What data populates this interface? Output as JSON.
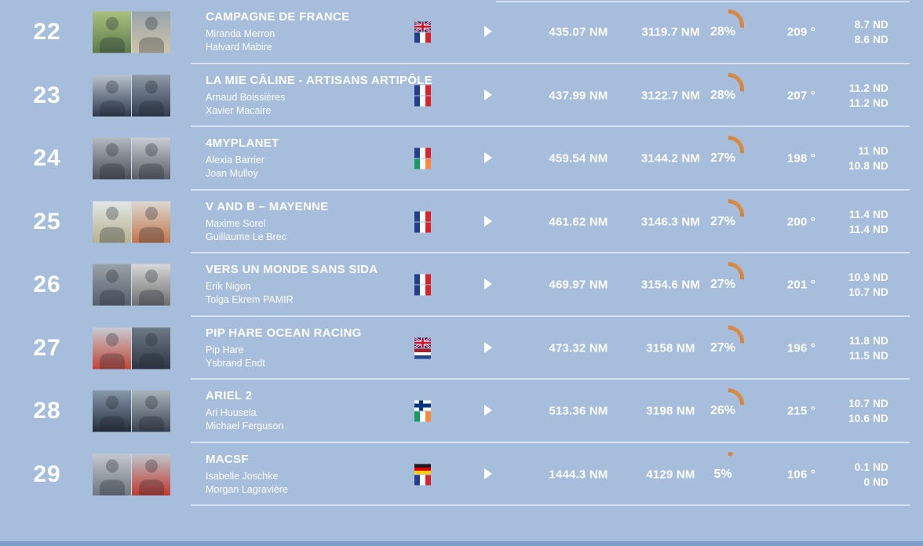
{
  "page": {
    "background_color": "#a6bedb",
    "bottom_bar_color": "#7d9dca",
    "separator_color": "#d6e2f2",
    "text_color": "#ffffff",
    "gauge_color_start": "#a85413",
    "gauge_color_end": "#e0954f"
  },
  "icons": {
    "expand_arrow": "play-triangle"
  },
  "rows": [
    {
      "rank": "22",
      "team": "CAMPAGNE DE FRANCE",
      "skipper1": "Miranda Merron",
      "skipper2": "Halvard Mabire",
      "flags": [
        "gb",
        "fr"
      ],
      "dist_to_leader": "435.07 NM",
      "dist_to_finish": "3119.7 NM",
      "progress_pct": 28,
      "progress_label": "28%",
      "heading": "209 °",
      "speed1": "8.7 ND",
      "speed2": "8.6 ND",
      "photo_left_colors": [
        "#a9c17f",
        "#5d7a4a"
      ],
      "photo_right_colors": [
        "#9aa4ae",
        "#cfc4a8"
      ]
    },
    {
      "rank": "23",
      "team": "LA MIE CÂLINE - ARTISANS ARTIPÔLE",
      "skipper1": "Arnaud Boissières",
      "skipper2": "Xavier Macaire",
      "flags": [
        "fr",
        "fr"
      ],
      "dist_to_leader": "437.99 NM",
      "dist_to_finish": "3122.7 NM",
      "progress_pct": 28,
      "progress_label": "28%",
      "heading": "207 °",
      "speed1": "11.2 ND",
      "speed2": "11.2 ND",
      "photo_left_colors": [
        "#b9c3cc",
        "#2e3a4d"
      ],
      "photo_right_colors": [
        "#8e9aa6",
        "#303c4e"
      ]
    },
    {
      "rank": "24",
      "team": "4MYPLANET",
      "skipper1": "Alexia Barrier",
      "skipper2": "Joan Mulloy",
      "flags": [
        "fr",
        "ie"
      ],
      "dist_to_leader": "459.54 NM",
      "dist_to_finish": "3144.2 NM",
      "progress_pct": 27,
      "progress_label": "27%",
      "heading": "198 °",
      "speed1": "11 ND",
      "speed2": "10.8 ND",
      "photo_left_colors": [
        "#b4b9c0",
        "#4a4f58"
      ],
      "photo_right_colors": [
        "#c9ccd1",
        "#5a5f66"
      ]
    },
    {
      "rank": "25",
      "team": "V AND B – MAYENNE",
      "skipper1": "Maxime Sorel",
      "skipper2": "Guillaume Le Brec",
      "flags": [
        "fr",
        "fr"
      ],
      "dist_to_leader": "461.62 NM",
      "dist_to_finish": "3146.3 NM",
      "progress_pct": 27,
      "progress_label": "27%",
      "heading": "200 °",
      "speed1": "11.4 ND",
      "speed2": "11.4 ND",
      "photo_left_colors": [
        "#e3e6e8",
        "#b5b28c"
      ],
      "photo_right_colors": [
        "#dcd9d2",
        "#c2764a"
      ]
    },
    {
      "rank": "26",
      "team": "VERS UN MONDE SANS SIDA",
      "skipper1": "Erik Nigon",
      "skipper2": "Tolga Ekrem PAMIR",
      "flags": [
        "fr",
        "fr"
      ],
      "dist_to_leader": "469.97 NM",
      "dist_to_finish": "3154.6 NM",
      "progress_pct": 27,
      "progress_label": "27%",
      "heading": "201 °",
      "speed1": "10.9 ND",
      "speed2": "10.7 ND",
      "photo_left_colors": [
        "#9aa1a8",
        "#55606c"
      ],
      "photo_right_colors": [
        "#d8d8d8",
        "#6e6e6e"
      ]
    },
    {
      "rank": "27",
      "team": "PIP HARE OCEAN RACING",
      "skipper1": "Pip Hare",
      "skipper2": "Ysbrand Endt",
      "flags": [
        "gb",
        "nl"
      ],
      "dist_to_leader": "473.32 NM",
      "dist_to_finish": "3158 NM",
      "progress_pct": 27,
      "progress_label": "27%",
      "heading": "196 °",
      "speed1": "11.8 ND",
      "speed2": "11.5 ND",
      "photo_left_colors": [
        "#c6ccd2",
        "#c24437"
      ],
      "photo_right_colors": [
        "#6f7b86",
        "#2c3642"
      ]
    },
    {
      "rank": "28",
      "team": "ARIEL 2",
      "skipper1": "Ari Huusela",
      "skipper2": "Michael Ferguson",
      "flags": [
        "fi",
        "ie"
      ],
      "dist_to_leader": "513.36 NM",
      "dist_to_finish": "3198 NM",
      "progress_pct": 26,
      "progress_label": "26%",
      "heading": "215 °",
      "speed1": "10.7 ND",
      "speed2": "10.6 ND",
      "photo_left_colors": [
        "#8899aa",
        "#232d3a"
      ],
      "photo_right_colors": [
        "#aab4bd",
        "#39434e"
      ]
    },
    {
      "rank": "29",
      "team": "MACSF",
      "skipper1": "Isabelle Joschke",
      "skipper2": "Morgan Lagravière",
      "flags": [
        "de",
        "fr"
      ],
      "dist_to_leader": "1444.3 NM",
      "dist_to_finish": "4129 NM",
      "progress_pct": 5,
      "progress_label": "5%",
      "heading": "106 °",
      "speed1": "0.1 ND",
      "speed2": "0 ND",
      "photo_left_colors": [
        "#c3c9cf",
        "#6f767e"
      ],
      "photo_right_colors": [
        "#bfc6cc",
        "#c0392f"
      ]
    }
  ]
}
